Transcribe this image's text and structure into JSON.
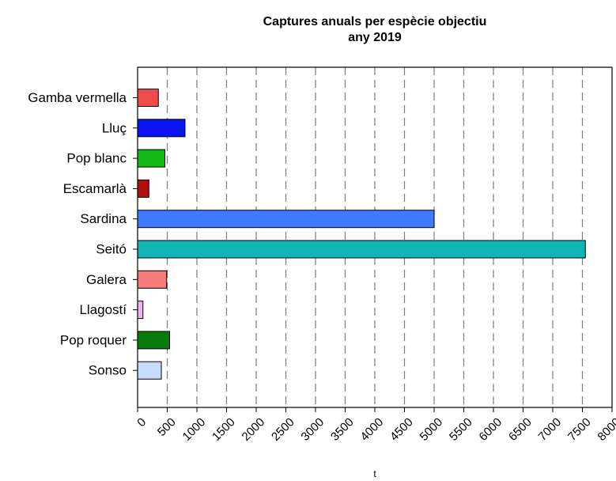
{
  "chart_data": {
    "type": "bar",
    "orientation": "horizontal",
    "title": "Captures anuals per espècie objectiu",
    "subtitle": "any 2019",
    "xlabel": "t",
    "ylabel": "",
    "xlim": [
      0,
      8000
    ],
    "xticks": [
      0,
      500,
      1000,
      1500,
      2000,
      2500,
      3000,
      3500,
      4000,
      4500,
      5000,
      5500,
      6000,
      6500,
      7000,
      7500,
      8000
    ],
    "grid": "vertical dashed",
    "legend": "none",
    "categories": [
      "Gamba vermella",
      "Lluç",
      "Pop blanc",
      "Escamarlà",
      "Sardina",
      "Seitó",
      "Galera",
      "Llagostí",
      "Pop roquer",
      "Sonso"
    ],
    "values": [
      350,
      800,
      460,
      190,
      5000,
      7550,
      490,
      90,
      540,
      400
    ],
    "colors": [
      "#f04a4a",
      "#0a14f0",
      "#14b814",
      "#b20f0f",
      "#3f7aff",
      "#0fb5b5",
      "#f77b7b",
      "#f0b4f0",
      "#0a7a0a",
      "#c3dcff"
    ]
  }
}
